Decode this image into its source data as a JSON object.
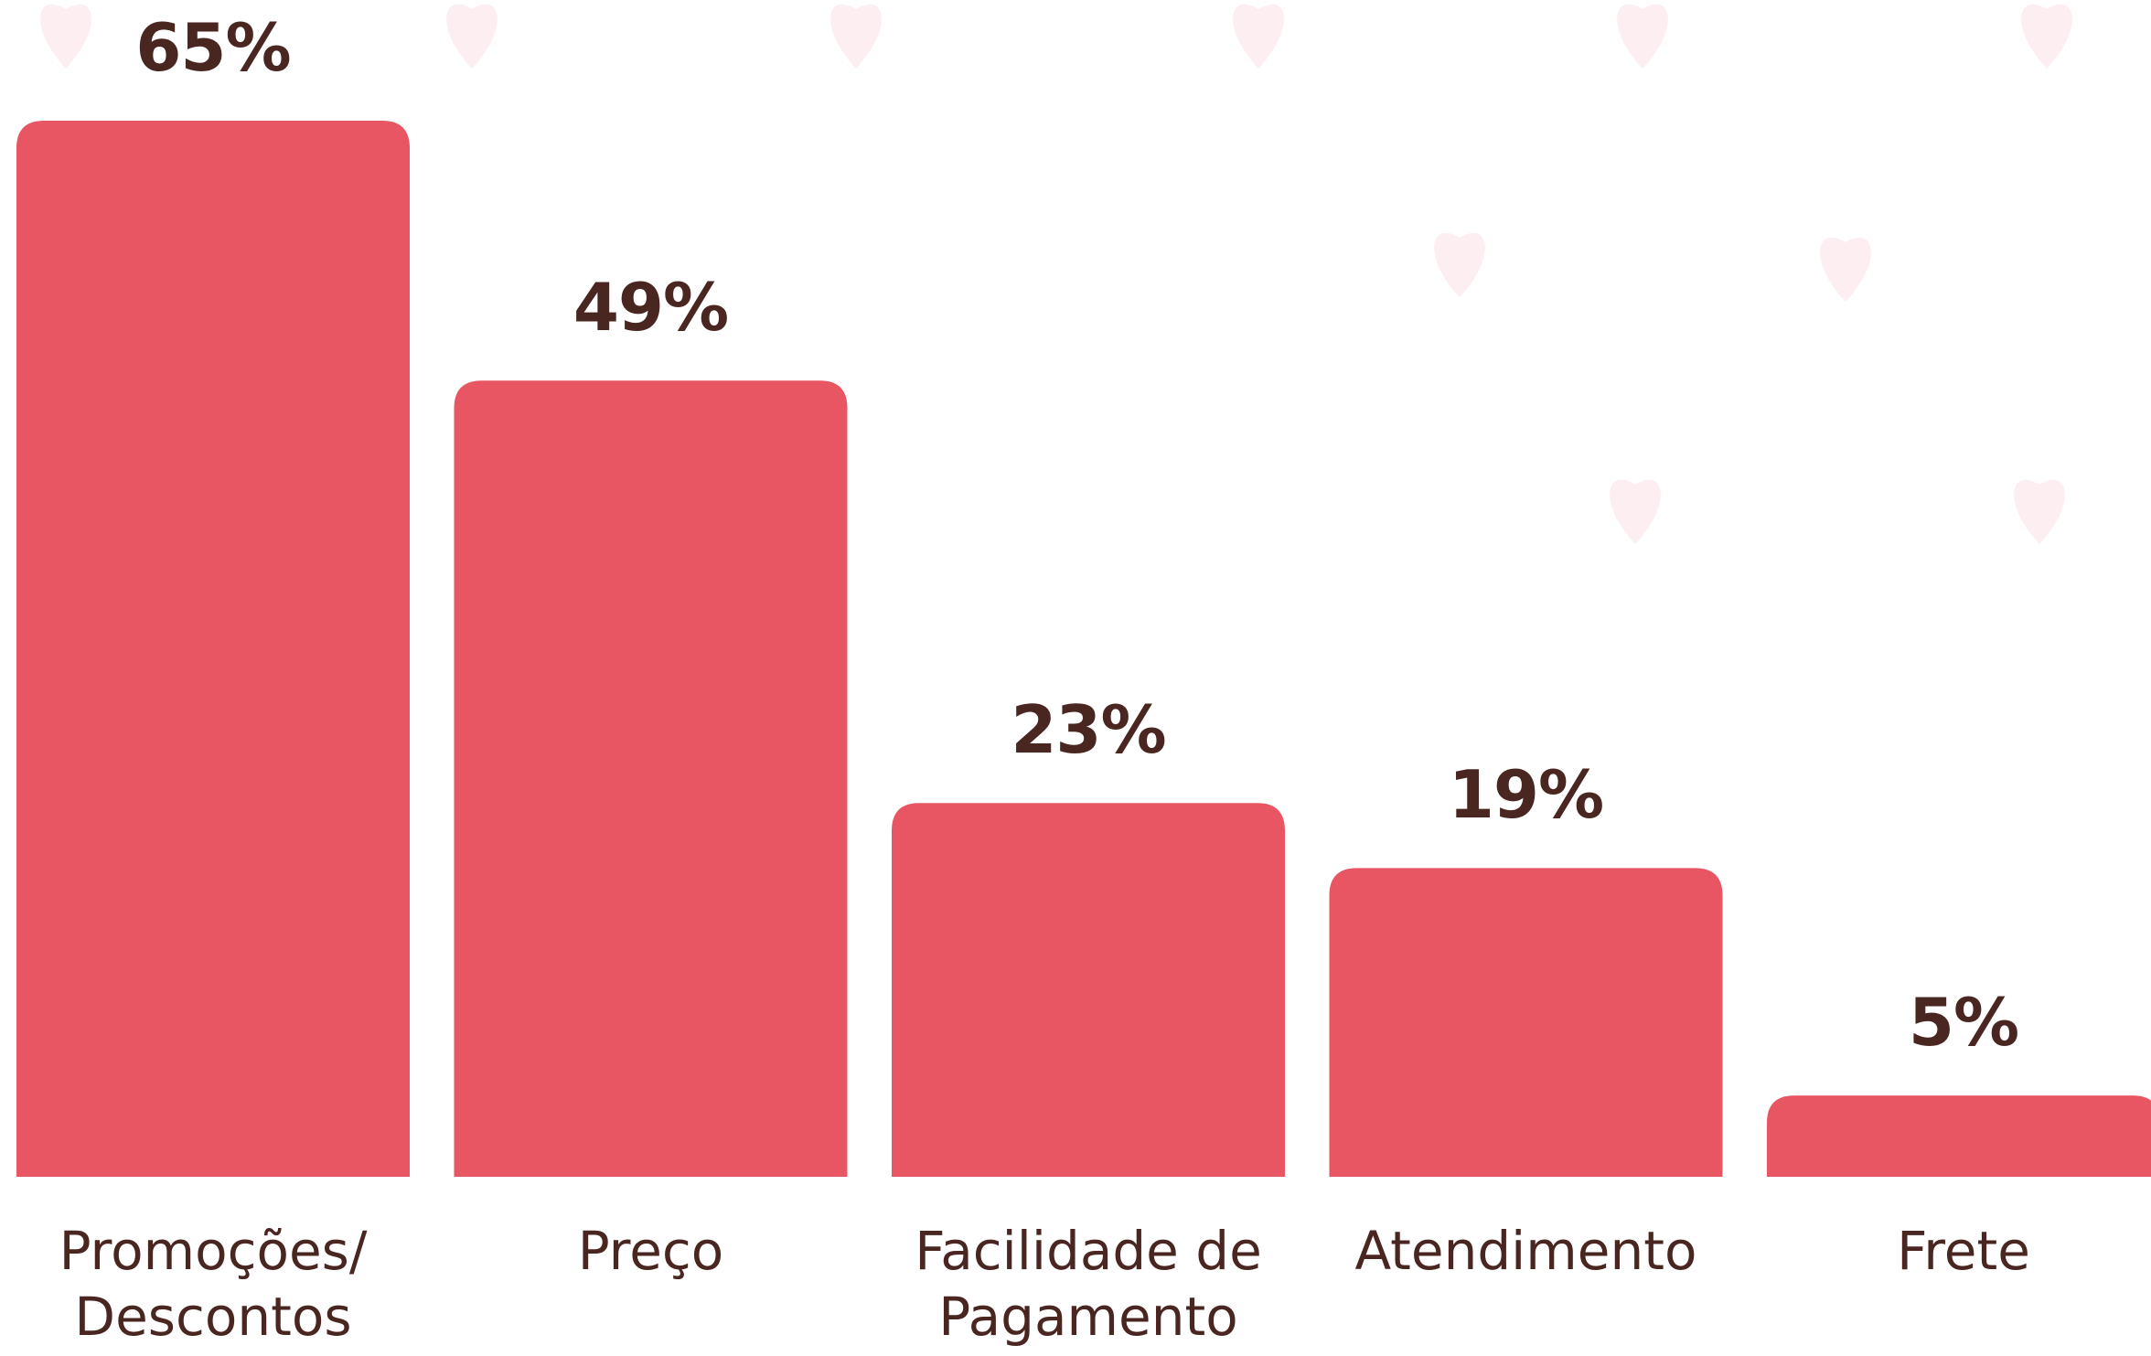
{
  "chart_data": {
    "type": "bar",
    "categories": [
      "Promoções/ Descontos",
      "Preço",
      "Facilidade de Pagamento",
      "Atendimento",
      "Frete"
    ],
    "values": [
      65,
      49,
      23,
      19,
      5
    ],
    "value_labels": [
      "65%",
      "49%",
      "23%",
      "19%",
      "5%"
    ],
    "color": "#e85663"
  }
}
